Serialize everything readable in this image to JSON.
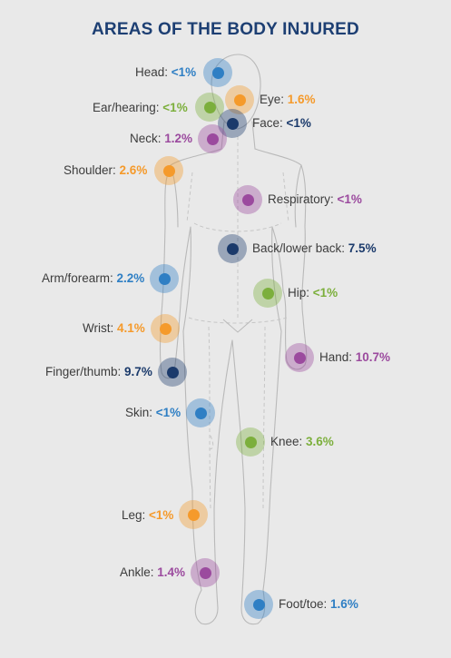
{
  "title": "AREAS OF THE BODY INJURED",
  "colors": {
    "blue": "#2f7fc4",
    "green": "#7caf3c",
    "orange": "#f59a2b",
    "navy": "#1b3a6b",
    "purple": "#9b4a9e"
  },
  "items": [
    {
      "id": "head",
      "label": "Head:",
      "value": "<1%",
      "color": "blue"
    },
    {
      "id": "ear",
      "label": "Ear/hearing:",
      "value": "<1%",
      "color": "green"
    },
    {
      "id": "eye",
      "label": "Eye:",
      "value": "1.6%",
      "color": "orange"
    },
    {
      "id": "face",
      "label": "Face:",
      "value": "<1%",
      "color": "navy"
    },
    {
      "id": "neck",
      "label": "Neck:",
      "value": "1.2%",
      "color": "purple"
    },
    {
      "id": "shoulder",
      "label": "Shoulder:",
      "value": "2.6%",
      "color": "orange"
    },
    {
      "id": "respiratory",
      "label": "Respiratory:",
      "value": "<1%",
      "color": "purple"
    },
    {
      "id": "back",
      "label": "Back/lower back:",
      "value": "7.5%",
      "color": "navy"
    },
    {
      "id": "arm",
      "label": "Arm/forearm:",
      "value": "2.2%",
      "color": "blue"
    },
    {
      "id": "hip",
      "label": "Hip:",
      "value": "<1%",
      "color": "green"
    },
    {
      "id": "wrist",
      "label": "Wrist:",
      "value": "4.1%",
      "color": "orange"
    },
    {
      "id": "hand",
      "label": "Hand:",
      "value": "10.7%",
      "color": "purple"
    },
    {
      "id": "finger",
      "label": "Finger/thumb:",
      "value": "9.7%",
      "color": "navy"
    },
    {
      "id": "skin",
      "label": "Skin:",
      "value": "<1%",
      "color": "blue"
    },
    {
      "id": "knee",
      "label": "Knee:",
      "value": "3.6%",
      "color": "green"
    },
    {
      "id": "leg",
      "label": "Leg:",
      "value": "<1%",
      "color": "orange"
    },
    {
      "id": "ankle",
      "label": "Ankle:",
      "value": "1.4%",
      "color": "purple"
    },
    {
      "id": "foot",
      "label": "Foot/toe:",
      "value": "1.6%",
      "color": "blue"
    }
  ]
}
